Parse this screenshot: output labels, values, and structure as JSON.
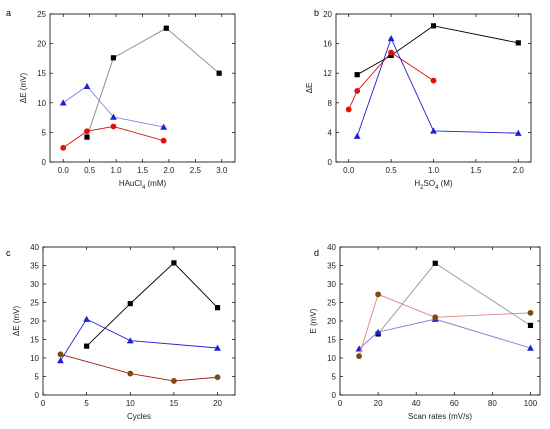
{
  "chart_data": [
    {
      "type": "line",
      "panel_label": "a",
      "xlabel_parts": [
        "HAuCl",
        "4",
        " (mM)"
      ],
      "ylabel": "ΔE (mV)",
      "xlim": [
        -0.25,
        3.25
      ],
      "ylim": [
        0,
        25
      ],
      "xticks": [
        0.0,
        0.5,
        1.0,
        1.5,
        2.0,
        2.5,
        3.0
      ],
      "xtick_labels": [
        "0.0",
        "0.5",
        "1.0",
        "1.5",
        "2.0",
        "2.5",
        "3.0"
      ],
      "yticks": [
        0,
        5,
        10,
        15,
        20,
        25
      ],
      "ytick_labels": [
        "0",
        "5",
        "10",
        "15",
        "20",
        "25"
      ],
      "grid": false,
      "series": [
        {
          "color": "#000000",
          "line_color": "#888888",
          "marker": "square",
          "x": [
            0.45,
            0.95,
            1.95,
            2.95
          ],
          "y": [
            4.2,
            17.6,
            22.6,
            15.0
          ]
        },
        {
          "color": "#e01010",
          "line_color": "#e01010",
          "marker": "circle",
          "x": [
            0.0,
            0.45,
            0.95,
            1.9
          ],
          "y": [
            2.4,
            5.2,
            6.0,
            3.6
          ]
        },
        {
          "color": "#2020d0",
          "line_color": "#8080e0",
          "marker": "triangle",
          "x": [
            0.0,
            0.45,
            0.95,
            1.9
          ],
          "y": [
            10.0,
            12.8,
            7.6,
            5.9
          ]
        }
      ]
    },
    {
      "type": "line",
      "panel_label": "b",
      "xlabel_parts": [
        "H",
        "2",
        "SO",
        "4",
        " (M)"
      ],
      "ylabel": "ΔE",
      "xlim": [
        -0.15,
        2.15
      ],
      "ylim": [
        0,
        20
      ],
      "xticks": [
        0.0,
        0.5,
        1.0,
        1.5,
        2.0
      ],
      "xtick_labels": [
        "0.0",
        "0.5",
        "1.0",
        "1.5",
        "2.0"
      ],
      "yticks": [
        0,
        4,
        8,
        12,
        16,
        20
      ],
      "ytick_labels": [
        "0",
        "4",
        "8",
        "12",
        "16",
        "20"
      ],
      "grid": false,
      "series": [
        {
          "color": "#000000",
          "line_color": "#000000",
          "marker": "square",
          "x": [
            0.1,
            0.5,
            1.0,
            2.0
          ],
          "y": [
            11.8,
            14.4,
            18.4,
            16.1
          ]
        },
        {
          "color": "#e01010",
          "line_color": "#e01010",
          "marker": "circle",
          "x": [
            0.0,
            0.1,
            0.5,
            1.0
          ],
          "y": [
            7.1,
            9.6,
            14.8,
            11.0
          ]
        },
        {
          "color": "#2020d0",
          "line_color": "#2020d0",
          "marker": "triangle",
          "x": [
            0.1,
            0.5,
            1.0,
            2.0
          ],
          "y": [
            3.5,
            16.7,
            4.2,
            3.9
          ]
        }
      ]
    },
    {
      "type": "line",
      "panel_label": "c",
      "xlabel_parts": [
        "Cycles"
      ],
      "ylabel": "ΔE (mV)",
      "xlim": [
        0,
        22
      ],
      "ylim": [
        0,
        40
      ],
      "xticks": [
        0,
        5,
        10,
        15,
        20
      ],
      "xtick_labels": [
        "0",
        "5",
        "10",
        "15",
        "20"
      ],
      "yticks": [
        0,
        5,
        10,
        15,
        20,
        25,
        30,
        35,
        40
      ],
      "ytick_labels": [
        "0",
        "5",
        "10",
        "15",
        "20",
        "25",
        "30",
        "35",
        "40"
      ],
      "grid": false,
      "series": [
        {
          "color": "#000000",
          "line_color": "#000000",
          "marker": "square",
          "x": [
            5,
            10,
            15,
            20
          ],
          "y": [
            13.2,
            24.7,
            35.7,
            23.6
          ]
        },
        {
          "color": "#2020d0",
          "line_color": "#2020d0",
          "marker": "triangle",
          "x": [
            2,
            5,
            10,
            15,
            20
          ],
          "y": [
            9.3,
            20.5,
            14.7,
            null,
            12.7
          ]
        },
        {
          "color": "#7a4a10",
          "line_color": "#a01818",
          "marker": "circle",
          "x": [
            2,
            10,
            15,
            20
          ],
          "y": [
            11.0,
            5.8,
            3.8,
            4.8
          ]
        }
      ]
    },
    {
      "type": "line",
      "panel_label": "d",
      "xlabel_parts": [
        "Scan rates (mV/s)"
      ],
      "ylabel": "E (mV)",
      "xlim": [
        0,
        105
      ],
      "ylim": [
        0,
        40
      ],
      "xticks": [
        0,
        20,
        40,
        60,
        80,
        100
      ],
      "xtick_labels": [
        "0",
        "20",
        "40",
        "60",
        "80",
        "100"
      ],
      "yticks": [
        0,
        5,
        10,
        15,
        20,
        25,
        30,
        35,
        40
      ],
      "ytick_labels": [
        "0",
        "5",
        "10",
        "15",
        "20",
        "25",
        "30",
        "35",
        "40"
      ],
      "grid": false,
      "series": [
        {
          "color": "#000000",
          "line_color": "#999999",
          "marker": "square",
          "x": [
            20,
            50,
            100
          ],
          "y": [
            16.5,
            35.6,
            18.8
          ]
        },
        {
          "color": "#2020d0",
          "line_color": "#8080d0",
          "marker": "triangle",
          "x": [
            10,
            20,
            50,
            100
          ],
          "y": [
            12.5,
            17.0,
            20.5,
            12.7
          ]
        },
        {
          "color": "#7a4a10",
          "line_color": "#e08080",
          "marker": "circle",
          "x": [
            10,
            20,
            50,
            100
          ],
          "y": [
            10.5,
            27.2,
            21.0,
            22.2
          ]
        }
      ]
    }
  ]
}
